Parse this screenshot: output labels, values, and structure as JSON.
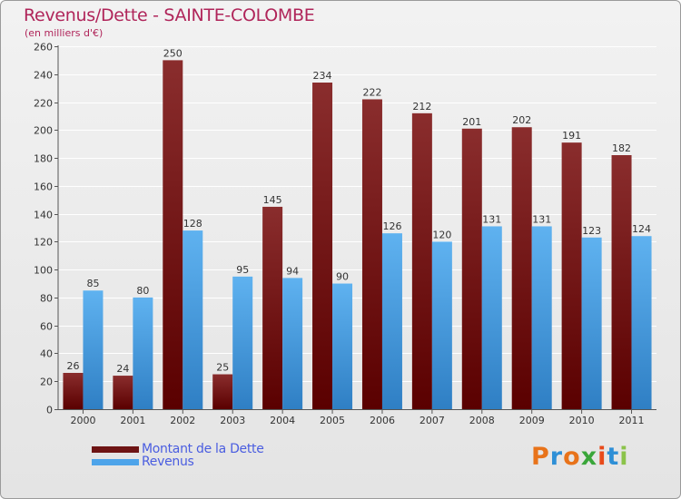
{
  "title": "Revenus/Dette - SAINTE-COLOMBE",
  "subtitle": "(en milliers d'€)",
  "colors": {
    "dette": "#6e1414",
    "revenus": "#4ea4ea",
    "title": "#b0255a",
    "legend_text": "#4a5de0"
  },
  "legend": {
    "dette_label": "Montant de la Dette",
    "revenus_label": "Revenus"
  },
  "logo": "Proxiti",
  "chart_data": {
    "type": "bar",
    "title": "Revenus/Dette - SAINTE-COLOMBE",
    "subtitle": "(en milliers d'€)",
    "xlabel": "",
    "ylabel": "",
    "ylim": [
      0,
      260
    ],
    "ytick_step": 20,
    "grid": true,
    "categories": [
      "2000",
      "2001",
      "2002",
      "2003",
      "2004",
      "2005",
      "2006",
      "2007",
      "2008",
      "2009",
      "2010",
      "2011"
    ],
    "series": [
      {
        "name": "Montant de la Dette",
        "values": [
          26,
          24,
          250,
          25,
          145,
          234,
          222,
          212,
          201,
          202,
          191,
          182
        ]
      },
      {
        "name": "Revenus",
        "values": [
          85,
          80,
          128,
          95,
          94,
          90,
          126,
          120,
          131,
          131,
          123,
          124
        ]
      }
    ],
    "legend_position": "bottom-left"
  }
}
